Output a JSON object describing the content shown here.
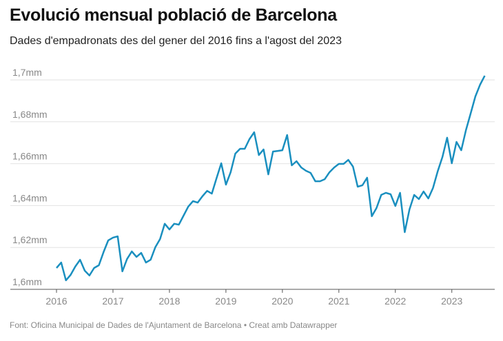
{
  "title": "Evolució mensual població de Barcelona",
  "subtitle": "Dades d'empadronats des del gener del 2016 fins a l'agost del 2023",
  "footer": "Font: Oficina Municipal de Dades de l'Ajuntament de Barcelona • Creat amb Datawrapper",
  "chart_data": {
    "type": "line",
    "title": "Evolució mensual població de Barcelona",
    "xlabel": "",
    "ylabel": "",
    "x_start": "2016-01",
    "x_end": "2023-08",
    "frequency": "monthly",
    "ylim": [
      1.6,
      1.7
    ],
    "y_unit": "millions",
    "y_ticks": [
      1.6,
      1.62,
      1.64,
      1.66,
      1.68,
      1.7
    ],
    "y_tick_labels": [
      "1,6mm",
      "1,62mm",
      "1,64mm",
      "1,66mm",
      "1,68mm",
      "1,7mm"
    ],
    "x_tick_labels": [
      "2016",
      "2017",
      "2018",
      "2019",
      "2020",
      "2021",
      "2022",
      "2023"
    ],
    "grid": true,
    "color": "#1a8fbf",
    "values": [
      1.6102,
      1.6128,
      1.6043,
      1.6069,
      1.6109,
      1.6141,
      1.6089,
      1.6066,
      1.6102,
      1.6115,
      1.6178,
      1.6234,
      1.6247,
      1.6253,
      1.6086,
      1.6145,
      1.6181,
      1.6155,
      1.6174,
      1.6128,
      1.6141,
      1.6201,
      1.624,
      1.6313,
      1.6286,
      1.6313,
      1.6309,
      1.6352,
      1.6395,
      1.6421,
      1.6414,
      1.6444,
      1.647,
      1.6457,
      1.653,
      1.6602,
      1.65,
      1.6559,
      1.6648,
      1.6671,
      1.6671,
      1.6717,
      1.675,
      1.6641,
      1.6668,
      1.6549,
      1.6658,
      1.6661,
      1.6664,
      1.6737,
      1.6592,
      1.6612,
      1.6582,
      1.6566,
      1.6556,
      1.6516,
      1.6516,
      1.6526,
      1.6559,
      1.6582,
      1.6599,
      1.6599,
      1.6618,
      1.6586,
      1.649,
      1.6497,
      1.6533,
      1.6349,
      1.6388,
      1.6451,
      1.6461,
      1.6454,
      1.6398,
      1.6461,
      1.6273,
      1.6382,
      1.6451,
      1.6431,
      1.6467,
      1.6434,
      1.6484,
      1.6563,
      1.6632,
      1.6724,
      1.6602,
      1.6704,
      1.6664,
      1.676,
      1.6839,
      1.6921,
      1.6977,
      1.702
    ]
  }
}
